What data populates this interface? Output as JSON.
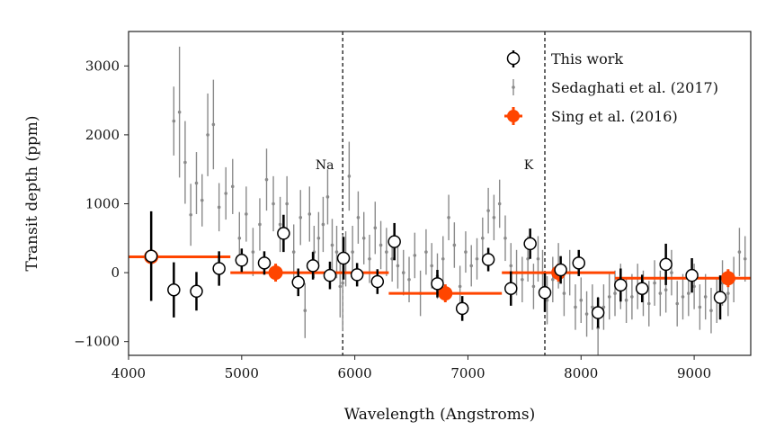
{
  "chart_data": {
    "type": "scatter",
    "xlabel": "Wavelength (Angstroms)",
    "ylabel": "Transit depth (ppm)",
    "xlim": [
      4000,
      9500
    ],
    "ylim": [
      -1200,
      3500
    ],
    "xticks": [
      4000,
      5000,
      6000,
      7000,
      8000,
      9000
    ],
    "yticks": [
      -1000,
      0,
      1000,
      2000,
      3000
    ],
    "xtick_labels": [
      "4000",
      "5000",
      "6000",
      "7000",
      "8000",
      "9000"
    ],
    "ytick_labels": [
      "−1000",
      "0",
      "1000",
      "2000",
      "3000"
    ],
    "legend_position": "top-right",
    "annotations": [
      {
        "text": "Na",
        "x": 5893
      },
      {
        "text": "K",
        "x": 7680
      }
    ],
    "series": [
      {
        "name": "This work",
        "marker": "open-circle",
        "color": "#000000",
        "points": [
          {
            "x": 4200,
            "y": 240,
            "err": 650
          },
          {
            "x": 4400,
            "y": -250,
            "err": 400
          },
          {
            "x": 4600,
            "y": -270,
            "err": 280
          },
          {
            "x": 4800,
            "y": 60,
            "err": 250
          },
          {
            "x": 5000,
            "y": 180,
            "err": 170
          },
          {
            "x": 5200,
            "y": 140,
            "err": 170
          },
          {
            "x": 5370,
            "y": 570,
            "err": 270
          },
          {
            "x": 5500,
            "y": -140,
            "err": 200
          },
          {
            "x": 5630,
            "y": 100,
            "err": 200
          },
          {
            "x": 5780,
            "y": -40,
            "err": 200
          },
          {
            "x": 5900,
            "y": 210,
            "err": 310
          },
          {
            "x": 6020,
            "y": -30,
            "err": 170
          },
          {
            "x": 6200,
            "y": -130,
            "err": 180
          },
          {
            "x": 6350,
            "y": 450,
            "err": 270
          },
          {
            "x": 6730,
            "y": -160,
            "err": 200
          },
          {
            "x": 6950,
            "y": -520,
            "err": 180
          },
          {
            "x": 7180,
            "y": 190,
            "err": 170
          },
          {
            "x": 7380,
            "y": -230,
            "err": 250
          },
          {
            "x": 7550,
            "y": 420,
            "err": 220
          },
          {
            "x": 7680,
            "y": -290,
            "err": 280
          },
          {
            "x": 7820,
            "y": 40,
            "err": 200
          },
          {
            "x": 7980,
            "y": 140,
            "err": 190
          },
          {
            "x": 8150,
            "y": -580,
            "err": 220
          },
          {
            "x": 8350,
            "y": -180,
            "err": 240
          },
          {
            "x": 8540,
            "y": -230,
            "err": 200
          },
          {
            "x": 8750,
            "y": 120,
            "err": 300
          },
          {
            "x": 8980,
            "y": -40,
            "err": 250
          },
          {
            "x": 9230,
            "y": -360,
            "err": 320
          }
        ]
      },
      {
        "name": "Sedaghati et al. (2017)",
        "marker": "small-dot",
        "color": "#8a8a8a",
        "points": [
          {
            "x": 4400,
            "y": 2200,
            "err": 500
          },
          {
            "x": 4450,
            "y": 2330,
            "err": 950
          },
          {
            "x": 4500,
            "y": 1600,
            "err": 600
          },
          {
            "x": 4550,
            "y": 840,
            "err": 450
          },
          {
            "x": 4600,
            "y": 1300,
            "err": 450
          },
          {
            "x": 4650,
            "y": 1050,
            "err": 380
          },
          {
            "x": 4700,
            "y": 2000,
            "err": 600
          },
          {
            "x": 4750,
            "y": 2150,
            "err": 650
          },
          {
            "x": 4800,
            "y": 950,
            "err": 350
          },
          {
            "x": 4860,
            "y": 1150,
            "err": 380
          },
          {
            "x": 4920,
            "y": 1250,
            "err": 400
          },
          {
            "x": 4980,
            "y": 500,
            "err": 380
          },
          {
            "x": 5040,
            "y": 850,
            "err": 400
          },
          {
            "x": 5100,
            "y": 300,
            "err": 350
          },
          {
            "x": 5160,
            "y": 700,
            "err": 380
          },
          {
            "x": 5220,
            "y": 1350,
            "err": 450
          },
          {
            "x": 5280,
            "y": 1000,
            "err": 400
          },
          {
            "x": 5340,
            "y": 700,
            "err": 400
          },
          {
            "x": 5400,
            "y": 1000,
            "err": 400
          },
          {
            "x": 5460,
            "y": 300,
            "err": 400
          },
          {
            "x": 5520,
            "y": 800,
            "err": 400
          },
          {
            "x": 5560,
            "y": -550,
            "err": 400
          },
          {
            "x": 5600,
            "y": 850,
            "err": 400
          },
          {
            "x": 5640,
            "y": 300,
            "err": 380
          },
          {
            "x": 5680,
            "y": 500,
            "err": 380
          },
          {
            "x": 5720,
            "y": 700,
            "err": 400
          },
          {
            "x": 5760,
            "y": 1100,
            "err": 400
          },
          {
            "x": 5800,
            "y": 400,
            "err": 380
          },
          {
            "x": 5840,
            "y": 300,
            "err": 380
          },
          {
            "x": 5870,
            "y": -200,
            "err": 450
          },
          {
            "x": 5893,
            "y": -150,
            "err": 700
          },
          {
            "x": 5920,
            "y": 200,
            "err": 400
          },
          {
            "x": 5950,
            "y": 1400,
            "err": 500
          },
          {
            "x": 5980,
            "y": 300,
            "err": 380
          },
          {
            "x": 6030,
            "y": 800,
            "err": 380
          },
          {
            "x": 6080,
            "y": 500,
            "err": 380
          },
          {
            "x": 6130,
            "y": 200,
            "err": 350
          },
          {
            "x": 6180,
            "y": 650,
            "err": 380
          },
          {
            "x": 6230,
            "y": 400,
            "err": 350
          },
          {
            "x": 6280,
            "y": 300,
            "err": 350
          },
          {
            "x": 6330,
            "y": 200,
            "err": 330
          },
          {
            "x": 6380,
            "y": 100,
            "err": 330
          },
          {
            "x": 6430,
            "y": 0,
            "err": 330
          },
          {
            "x": 6480,
            "y": -100,
            "err": 330
          },
          {
            "x": 6530,
            "y": 250,
            "err": 330
          },
          {
            "x": 6580,
            "y": -300,
            "err": 330
          },
          {
            "x": 6630,
            "y": 300,
            "err": 330
          },
          {
            "x": 6680,
            "y": 100,
            "err": 330
          },
          {
            "x": 6730,
            "y": -50,
            "err": 330
          },
          {
            "x": 6780,
            "y": 200,
            "err": 330
          },
          {
            "x": 6830,
            "y": 800,
            "err": 330
          },
          {
            "x": 6880,
            "y": 400,
            "err": 330
          },
          {
            "x": 6930,
            "y": -200,
            "err": 300
          },
          {
            "x": 6980,
            "y": 300,
            "err": 300
          },
          {
            "x": 7030,
            "y": 100,
            "err": 300
          },
          {
            "x": 7080,
            "y": 200,
            "err": 300
          },
          {
            "x": 7130,
            "y": 500,
            "err": 300
          },
          {
            "x": 7180,
            "y": 900,
            "err": 330
          },
          {
            "x": 7230,
            "y": 800,
            "err": 330
          },
          {
            "x": 7280,
            "y": 1000,
            "err": 350
          },
          {
            "x": 7330,
            "y": 500,
            "err": 330
          },
          {
            "x": 7380,
            "y": 100,
            "err": 330
          },
          {
            "x": 7430,
            "y": 0,
            "err": 330
          },
          {
            "x": 7480,
            "y": -100,
            "err": 330
          },
          {
            "x": 7530,
            "y": 200,
            "err": 330
          },
          {
            "x": 7580,
            "y": -200,
            "err": 330
          },
          {
            "x": 7620,
            "y": 200,
            "err": 330
          },
          {
            "x": 7660,
            "y": 0,
            "err": 330
          },
          {
            "x": 7700,
            "y": -400,
            "err": 350
          },
          {
            "x": 7750,
            "y": -100,
            "err": 330
          },
          {
            "x": 7800,
            "y": 100,
            "err": 330
          },
          {
            "x": 7850,
            "y": -300,
            "err": 330
          },
          {
            "x": 7900,
            "y": 0,
            "err": 330
          },
          {
            "x": 7950,
            "y": -500,
            "err": 330
          },
          {
            "x": 8000,
            "y": -400,
            "err": 330
          },
          {
            "x": 8050,
            "y": -600,
            "err": 330
          },
          {
            "x": 8100,
            "y": -500,
            "err": 330
          },
          {
            "x": 8150,
            "y": -800,
            "err": 450
          },
          {
            "x": 8200,
            "y": -500,
            "err": 330
          },
          {
            "x": 8250,
            "y": -350,
            "err": 330
          },
          {
            "x": 8300,
            "y": -300,
            "err": 330
          },
          {
            "x": 8350,
            "y": -200,
            "err": 330
          },
          {
            "x": 8400,
            "y": -400,
            "err": 330
          },
          {
            "x": 8450,
            "y": -350,
            "err": 330
          },
          {
            "x": 8500,
            "y": -200,
            "err": 330
          },
          {
            "x": 8550,
            "y": -300,
            "err": 330
          },
          {
            "x": 8600,
            "y": -450,
            "err": 330
          },
          {
            "x": 8650,
            "y": -150,
            "err": 330
          },
          {
            "x": 8700,
            "y": -300,
            "err": 330
          },
          {
            "x": 8750,
            "y": -250,
            "err": 330
          },
          {
            "x": 8800,
            "y": 0,
            "err": 330
          },
          {
            "x": 8850,
            "y": -450,
            "err": 330
          },
          {
            "x": 8900,
            "y": -350,
            "err": 330
          },
          {
            "x": 8950,
            "y": -300,
            "err": 330
          },
          {
            "x": 9000,
            "y": -200,
            "err": 330
          },
          {
            "x": 9050,
            "y": -500,
            "err": 330
          },
          {
            "x": 9100,
            "y": -350,
            "err": 330
          },
          {
            "x": 9150,
            "y": -550,
            "err": 330
          },
          {
            "x": 9200,
            "y": -400,
            "err": 330
          },
          {
            "x": 9250,
            "y": -150,
            "err": 330
          },
          {
            "x": 9300,
            "y": -300,
            "err": 330
          },
          {
            "x": 9350,
            "y": -100,
            "err": 330
          },
          {
            "x": 9400,
            "y": 300,
            "err": 350
          },
          {
            "x": 9450,
            "y": 200,
            "err": 330
          }
        ]
      },
      {
        "name": "Sing et al. (2016)",
        "marker": "filled-circle",
        "color": "#ff4500",
        "points": [
          {
            "x": 4200,
            "y": 230,
            "x_lo": 4000,
            "x_hi": 4900,
            "err": 0
          },
          {
            "x": 5300,
            "y": 0,
            "x_lo": 4900,
            "x_hi": 6300,
            "err": 130
          },
          {
            "x": 6800,
            "y": -300,
            "x_lo": 6300,
            "x_hi": 7300,
            "err": 130
          },
          {
            "x": 7800,
            "y": 0,
            "x_lo": 7300,
            "x_hi": 8300,
            "err": 130
          },
          {
            "x": 9300,
            "y": -80,
            "x_lo": 8300,
            "x_hi": 9500,
            "err": 130
          }
        ]
      }
    ]
  }
}
